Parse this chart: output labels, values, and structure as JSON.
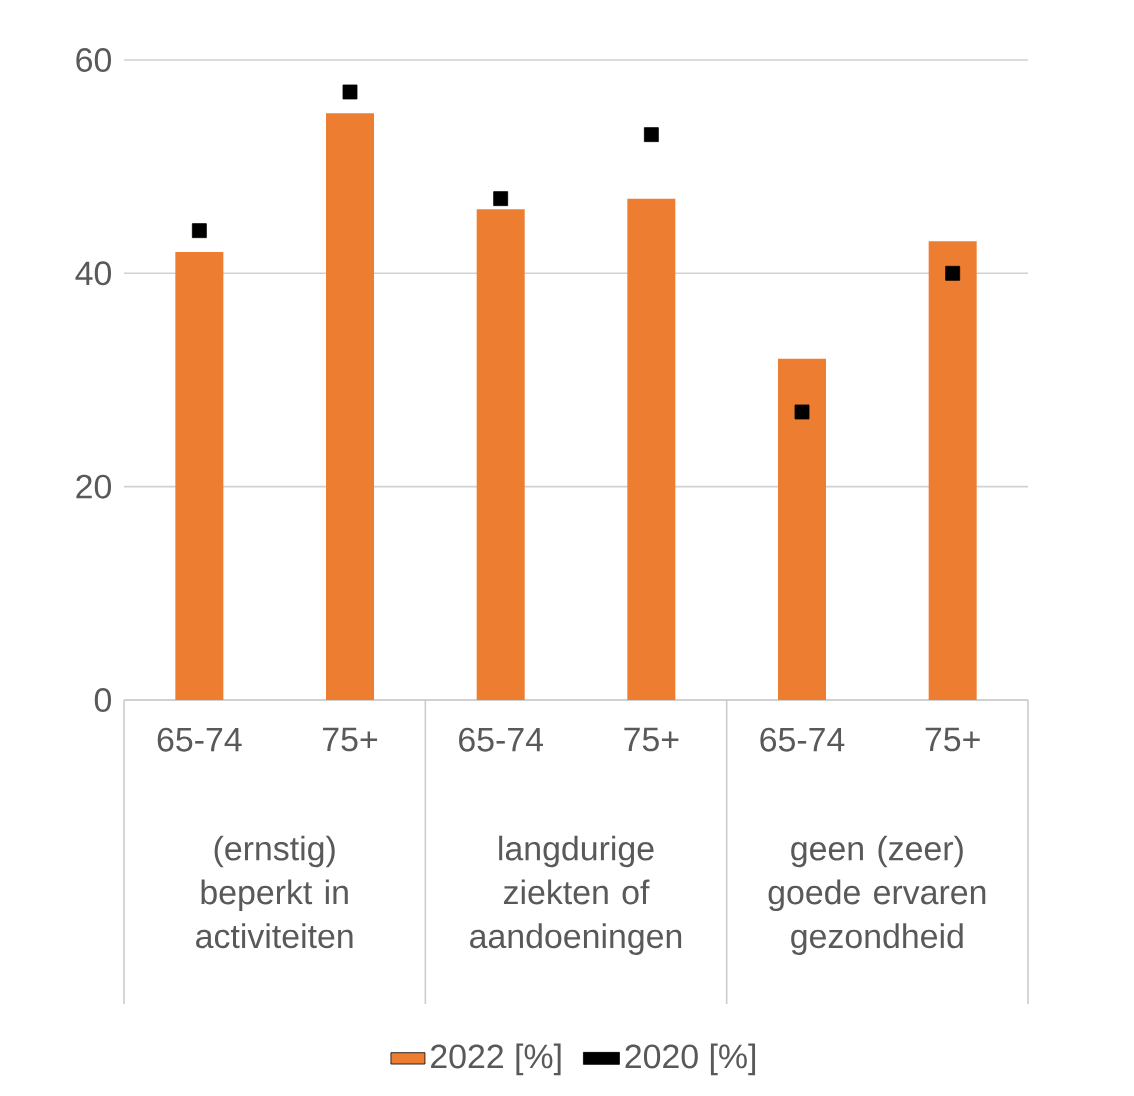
{
  "chart_data": {
    "type": "bar",
    "categories": [
      "65-74",
      "75+",
      "65-74",
      "75+",
      "65-74",
      "75+"
    ],
    "series": [
      {
        "name": "2022 [%]",
        "color": "#ed7d31",
        "values": [
          42,
          55,
          46,
          47,
          32,
          43
        ]
      },
      {
        "name": "2020 [%]",
        "type": "scatter",
        "marker": "square",
        "color": "#000000",
        "values": [
          44,
          57,
          47,
          53,
          27,
          40
        ]
      }
    ],
    "ylim": [
      0,
      60
    ],
    "yticks": [
      0,
      20,
      40,
      60
    ],
    "grid": "y",
    "legend": "bottom",
    "annotations": [
      "(ernstig) beperkt in activiteiten",
      "langdurige ziekten of aandoeningen",
      "geen (zeer) goede ervaren gezondheid"
    ]
  }
}
